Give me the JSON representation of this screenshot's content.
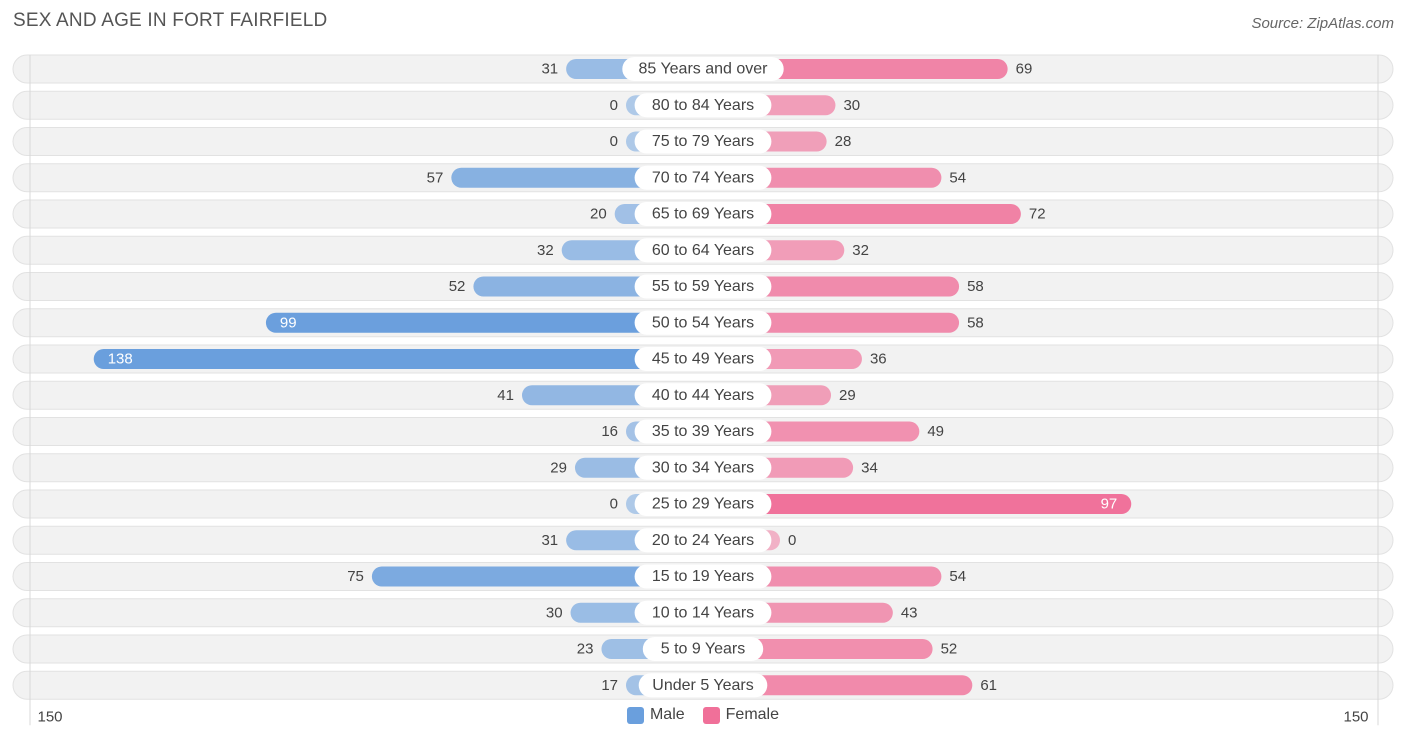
{
  "title": "SEX AND AGE IN FORT FAIRFIELD",
  "source": "Source: ZipAtlas.com",
  "colors": {
    "male": "#6a9fdd",
    "female": "#f07099"
  },
  "chart_data": {
    "type": "bar",
    "orientation": "horizontal-diverging",
    "title": "SEX AND AGE IN FORT FAIRFIELD",
    "categories": [
      "85 Years and over",
      "80 to 84 Years",
      "75 to 79 Years",
      "70 to 74 Years",
      "65 to 69 Years",
      "60 to 64 Years",
      "55 to 59 Years",
      "50 to 54 Years",
      "45 to 49 Years",
      "40 to 44 Years",
      "35 to 39 Years",
      "30 to 34 Years",
      "25 to 29 Years",
      "20 to 24 Years",
      "15 to 19 Years",
      "10 to 14 Years",
      "5 to 9 Years",
      "Under 5 Years"
    ],
    "series": [
      {
        "name": "Male",
        "values": [
          31,
          0,
          0,
          57,
          20,
          32,
          52,
          99,
          138,
          41,
          16,
          29,
          0,
          31,
          75,
          30,
          23,
          17
        ]
      },
      {
        "name": "Female",
        "values": [
          69,
          30,
          28,
          54,
          72,
          32,
          58,
          58,
          36,
          29,
          49,
          34,
          97,
          0,
          54,
          43,
          52,
          61
        ]
      }
    ],
    "axis": {
      "left_label": "150",
      "right_label": "150",
      "max": 150
    },
    "legend": {
      "position": "bottom-center",
      "entries": [
        "Male",
        "Female"
      ]
    }
  }
}
